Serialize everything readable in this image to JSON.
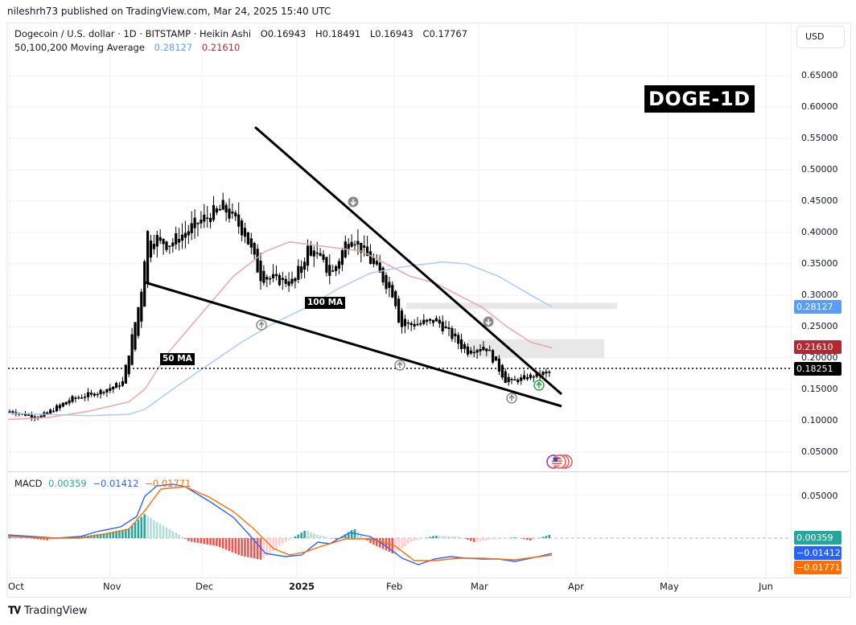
{
  "publisher": "nileshrh73 published on TradingView.com, Mar 24, 2025 15:40 UTC",
  "legend": {
    "symbol": "Dogecoin / U.S. dollar · 1D · BITSTAMP · Heikin Ashi",
    "open": "O0.16943",
    "high": "H0.18491",
    "low": "L0.16943",
    "close": "C0.17767",
    "ma_label": "50,100,200 Moving Average",
    "ma_val_1": "0.28127",
    "ma_val_2": "0.21610"
  },
  "currency_button": "USD",
  "badge": "DOGE-1D",
  "annotations": {
    "ma50": "50 MA",
    "ma100": "100 MA"
  },
  "price_tags": {
    "ma100": "0.28127",
    "ma50": "0.21610",
    "last": "0.18251"
  },
  "macd": {
    "label": "MACD",
    "hist": "0.00359",
    "macd": "−0.01412",
    "signal": "−0.01771",
    "axis_label": "0.05000",
    "tags": {
      "hist": "0.00359",
      "macd": "−0.01412",
      "signal": "−0.01771"
    }
  },
  "branding": "TradingView",
  "colors": {
    "ma50": "#e8a3a6",
    "ma100": "#a9c9f5",
    "tag_ma100": "#5b9cf6",
    "tag_ma50": "#b22833",
    "tag_last": "#000000",
    "macd_line": "#2962ff",
    "signal_line": "#ff6d00",
    "hist_pos": "#26a69a",
    "hist_neg": "#ef5350",
    "hist_tag": "#26a69a"
  },
  "chart_data": [
    {
      "type": "candlestick",
      "title": "Dogecoin / U.S. dollar · 1D · BITSTAMP · Heikin Ashi",
      "xlabel": "",
      "ylabel": "USD",
      "x_ticks": [
        "Oct",
        "Nov",
        "Dec",
        "2025",
        "Feb",
        "Mar",
        "Apr",
        "May",
        "Jun"
      ],
      "y_ticks": [
        0.65,
        0.6,
        0.55,
        0.5,
        0.45,
        0.4,
        0.35,
        0.3,
        0.25,
        0.2,
        0.15,
        0.1,
        0.05
      ],
      "ylim": [
        0.02,
        0.68
      ],
      "grid": true,
      "ohlc_last": {
        "open": 0.16943,
        "high": 0.18491,
        "low": 0.16943,
        "close": 0.17767
      },
      "last_price_line": 0.18251,
      "approx_close_path": [
        {
          "date": "Oct 1",
          "close": 0.115
        },
        {
          "date": "Oct 10",
          "close": 0.105
        },
        {
          "date": "Oct 20",
          "close": 0.135
        },
        {
          "date": "Oct 28",
          "close": 0.145
        },
        {
          "date": "Nov 5",
          "close": 0.16
        },
        {
          "date": "Nov 11",
          "close": 0.3
        },
        {
          "date": "Nov 13",
          "close": 0.4
        },
        {
          "date": "Nov 20",
          "close": 0.38
        },
        {
          "date": "Dec 1",
          "close": 0.42
        },
        {
          "date": "Dec 8",
          "close": 0.44
        },
        {
          "date": "Dec 15",
          "close": 0.4
        },
        {
          "date": "Dec 20",
          "close": 0.33
        },
        {
          "date": "Dec 31",
          "close": 0.32
        },
        {
          "date": "Jan 5",
          "close": 0.38
        },
        {
          "date": "Jan 12",
          "close": 0.33
        },
        {
          "date": "Jan 18",
          "close": 0.4
        },
        {
          "date": "Jan 25",
          "close": 0.35
        },
        {
          "date": "Feb 1",
          "close": 0.3
        },
        {
          "date": "Feb 3",
          "close": 0.25
        },
        {
          "date": "Feb 15",
          "close": 0.26
        },
        {
          "date": "Feb 25",
          "close": 0.21
        },
        {
          "date": "Mar 3",
          "close": 0.22
        },
        {
          "date": "Mar 10",
          "close": 0.16
        },
        {
          "date": "Mar 17",
          "close": 0.17
        },
        {
          "date": "Mar 24",
          "close": 0.178
        }
      ],
      "series": [
        {
          "name": "50 MA",
          "color": "#e8a3a6",
          "last": 0.2161
        },
        {
          "name": "100 MA",
          "color": "#a9c9f5",
          "last": 0.28127
        }
      ],
      "drawings": {
        "falling_wedge_upper": {
          "from": {
            "date": "Dec 9",
            "price": 0.565
          },
          "to": {
            "date": "Mar 28",
            "price": 0.145
          }
        },
        "falling_wedge_lower": {
          "from": {
            "date": "Nov 13",
            "price": 0.32
          },
          "to": {
            "date": "Mar 28",
            "price": 0.125
          }
        },
        "resistance_zones": [
          [
            0.278,
            0.288
          ],
          [
            0.2,
            0.23
          ]
        ],
        "arrows": [
          {
            "type": "down",
            "date": "Jan 18",
            "price": 0.45
          },
          {
            "type": "up",
            "date": "Dec 20",
            "price": 0.245
          },
          {
            "type": "up",
            "date": "Feb 3",
            "price": 0.18
          },
          {
            "type": "down",
            "date": "Mar 2",
            "price": 0.255
          },
          {
            "type": "up",
            "date": "Mar 11",
            "price": 0.135
          },
          {
            "type": "up-green",
            "date": "Mar 20",
            "price": 0.16
          }
        ]
      }
    },
    {
      "type": "line",
      "title": "MACD",
      "x_ticks": [
        "Oct",
        "Nov",
        "Dec",
        "2025",
        "Feb",
        "Mar",
        "Apr",
        "May",
        "Jun"
      ],
      "y_ticks": [
        0.05
      ],
      "values_last": {
        "histogram": 0.00359,
        "macd": -0.01412,
        "signal": -0.01771
      },
      "series": [
        {
          "name": "MACD",
          "color": "#2962ff"
        },
        {
          "name": "Signal",
          "color": "#ff6d00"
        },
        {
          "name": "Histogram",
          "color": "#26a69a"
        }
      ]
    }
  ]
}
